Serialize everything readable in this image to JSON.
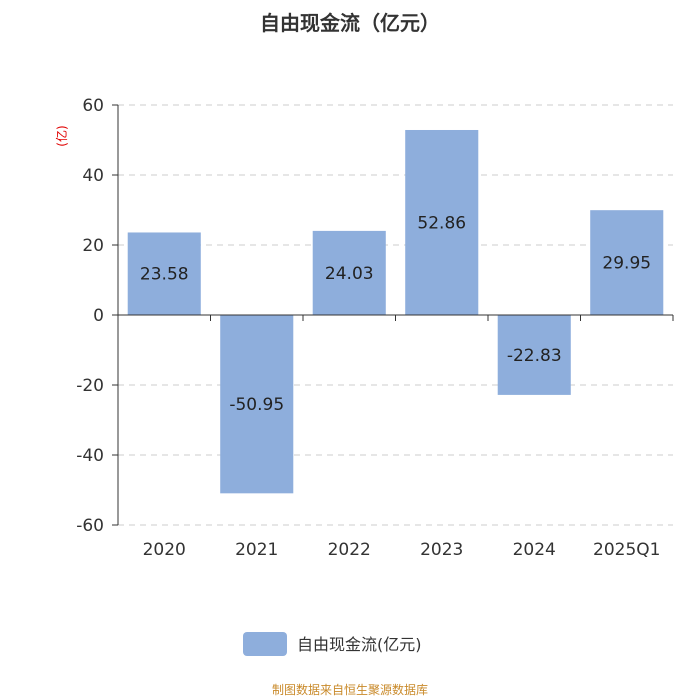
{
  "chart_data": {
    "type": "bar",
    "title": "自由现金流（亿元）",
    "ylabel": "亿元",
    "ylabel_display": "(亿)",
    "categories": [
      "2020",
      "2021",
      "2022",
      "2023",
      "2024",
      "2025Q1"
    ],
    "series": [
      {
        "name": "自由现金流(亿元)",
        "values": [
          23.58,
          -50.95,
          24.03,
          52.86,
          -22.83,
          29.95
        ],
        "color": "#8eaedc"
      }
    ],
    "data_labels": [
      "23.58",
      "-50.95",
      "24.03",
      "52.86",
      "-22.83",
      "29.95"
    ],
    "ylim": [
      -60,
      60
    ],
    "yticks": [
      60,
      40,
      20,
      0,
      -20,
      -40,
      -60
    ],
    "ytick_labels": [
      "60",
      "40",
      "20",
      "0",
      "-20",
      "-40",
      "-60"
    ],
    "grid": true,
    "legend_position": "bottom-center"
  },
  "footer": {
    "source": "制图数据来自恒生聚源数据库"
  },
  "colors": {
    "bar": "#8eaedc",
    "grid": "#cccccc",
    "axis": "#333333",
    "unit": "#e00000",
    "source": "#c98a2a"
  }
}
